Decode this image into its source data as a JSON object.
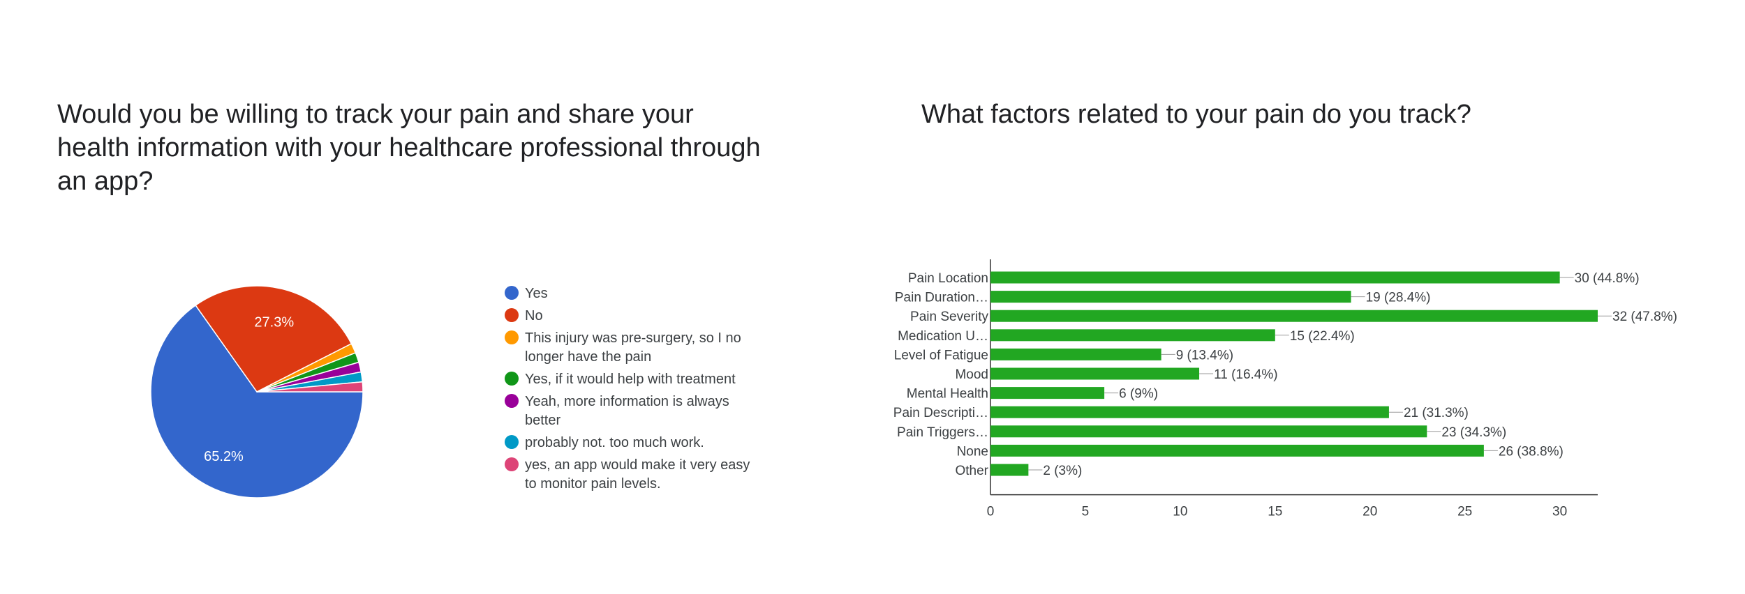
{
  "chart_data": [
    {
      "type": "pie",
      "title": "Would you be willing to track your pain and share your health information with your healthcare professional through an app?",
      "slices": [
        {
          "label": "Yes",
          "percent": 65.2,
          "display": "65.2%",
          "color": "#3366cc"
        },
        {
          "label": "No",
          "percent": 27.3,
          "display": "27.3%",
          "color": "#dc3912"
        },
        {
          "label": "This injury was pre-surgery, so I no longer have the pain",
          "percent": 1.5,
          "color": "#ff9900"
        },
        {
          "label": "Yes, if it would help with treatment",
          "percent": 1.5,
          "color": "#109618"
        },
        {
          "label": "Yeah, more information is always better",
          "percent": 1.5,
          "color": "#990099"
        },
        {
          "label": "probably not. too much work.",
          "percent": 1.5,
          "color": "#0099c6"
        },
        {
          "label": "yes, an app would make it very easy to monitor pain levels.",
          "percent": 1.5,
          "color": "#dd4477"
        }
      ],
      "legend_lines": [
        [
          "Yes"
        ],
        [
          "No"
        ],
        [
          "This injury was pre-surgery, so I no",
          "longer have the pain"
        ],
        [
          "Yes, if it would help with treatment"
        ],
        [
          "Yeah, more information is always",
          "better"
        ],
        [
          "probably not. too much work."
        ],
        [
          "yes, an app would make it very easy",
          "to monitor pain levels."
        ]
      ],
      "legend_position": "right"
    },
    {
      "type": "bar",
      "orientation": "horizontal",
      "title": "What factors related to your pain do you track?",
      "categories": [
        "Pain Location",
        "Pain Duration…",
        "Pain Severity",
        "Medication U…",
        "Level of Fatigue",
        "Mood",
        "Mental Health",
        "Pain Descripti…",
        "Pain Triggers…",
        "None",
        "Other"
      ],
      "values": [
        30,
        19,
        32,
        15,
        9,
        11,
        6,
        21,
        23,
        26,
        2
      ],
      "value_labels": [
        "30 (44.8%)",
        "19 (28.4%)",
        "32 (47.8%)",
        "15 (22.4%)",
        "9 (13.4%)",
        "11 (16.4%)",
        "6 (9%)",
        "21 (31.3%)",
        "23 (34.3%)",
        "26 (38.8%)",
        "2 (3%)"
      ],
      "xlim": [
        0,
        32
      ],
      "xticks": [
        "0",
        "5",
        "10",
        "15",
        "20",
        "25",
        "30"
      ],
      "xtick_values": [
        0,
        5,
        10,
        15,
        20,
        25,
        30
      ],
      "bar_color": "#22a722",
      "grid": false
    }
  ]
}
